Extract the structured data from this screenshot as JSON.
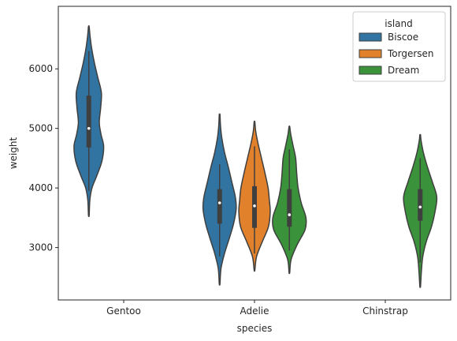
{
  "chart_data": {
    "type": "violin",
    "xlabel": "species",
    "ylabel": "weight",
    "categories": [
      "Gentoo",
      "Adelie",
      "Chinstrap"
    ],
    "ylim": [
      2120,
      7050
    ],
    "yticks": [
      3000,
      4000,
      5000,
      6000
    ],
    "legend": {
      "title": "island",
      "placement": "top-right"
    },
    "series": [
      {
        "name": "Biscoe",
        "color": "#3274a1"
      },
      {
        "name": "Torgersen",
        "color": "#e1812c"
      },
      {
        "name": "Dream",
        "color": "#3a923a"
      }
    ],
    "violins": [
      {
        "category": "Gentoo",
        "island": "Biscoe",
        "min": 3540,
        "max": 6710,
        "q1": 4680,
        "median": 5000,
        "q3": 5550,
        "whisker_low": 3950,
        "whisker_high": 6300,
        "density": [
          [
            3540,
            0.02
          ],
          [
            3800,
            0.06
          ],
          [
            4000,
            0.18
          ],
          [
            4200,
            0.45
          ],
          [
            4450,
            0.75
          ],
          [
            4700,
            0.85
          ],
          [
            4900,
            0.7
          ],
          [
            5100,
            0.6
          ],
          [
            5350,
            0.68
          ],
          [
            5600,
            0.72
          ],
          [
            5850,
            0.52
          ],
          [
            6100,
            0.32
          ],
          [
            6350,
            0.16
          ],
          [
            6550,
            0.07
          ],
          [
            6710,
            0.02
          ]
        ]
      },
      {
        "category": "Adelie",
        "island": "Biscoe",
        "min": 2390,
        "max": 5230,
        "q1": 3400,
        "median": 3750,
        "q3": 3980,
        "whisker_low": 2850,
        "whisker_high": 4400,
        "density": [
          [
            2390,
            0.02
          ],
          [
            2650,
            0.08
          ],
          [
            2900,
            0.28
          ],
          [
            3150,
            0.55
          ],
          [
            3400,
            0.8
          ],
          [
            3650,
            0.95
          ],
          [
            3850,
            0.9
          ],
          [
            4100,
            0.7
          ],
          [
            4350,
            0.5
          ],
          [
            4600,
            0.28
          ],
          [
            4850,
            0.12
          ],
          [
            5050,
            0.05
          ],
          [
            5230,
            0.02
          ]
        ]
      },
      {
        "category": "Adelie",
        "island": "Torgersen",
        "min": 2620,
        "max": 5110,
        "q1": 3330,
        "median": 3700,
        "q3": 4030,
        "whisker_low": 2900,
        "whisker_high": 4700,
        "density": [
          [
            2620,
            0.02
          ],
          [
            2850,
            0.12
          ],
          [
            3100,
            0.45
          ],
          [
            3350,
            0.8
          ],
          [
            3600,
            0.9
          ],
          [
            3800,
            0.85
          ],
          [
            4000,
            0.78
          ],
          [
            4250,
            0.6
          ],
          [
            4500,
            0.4
          ],
          [
            4750,
            0.2
          ],
          [
            4950,
            0.07
          ],
          [
            5110,
            0.02
          ]
        ]
      },
      {
        "category": "Adelie",
        "island": "Dream",
        "min": 2580,
        "max": 5030,
        "q1": 3350,
        "median": 3550,
        "q3": 3980,
        "whisker_low": 2950,
        "whisker_high": 4650,
        "density": [
          [
            2580,
            0.02
          ],
          [
            2800,
            0.1
          ],
          [
            3050,
            0.45
          ],
          [
            3300,
            0.9
          ],
          [
            3500,
            0.95
          ],
          [
            3750,
            0.68
          ],
          [
            4000,
            0.5
          ],
          [
            4250,
            0.42
          ],
          [
            4500,
            0.36
          ],
          [
            4700,
            0.22
          ],
          [
            4900,
            0.08
          ],
          [
            5030,
            0.02
          ]
        ]
      },
      {
        "category": "Chinstrap",
        "island": "Dream",
        "min": 2350,
        "max": 4890,
        "q1": 3450,
        "median": 3680,
        "q3": 3980,
        "whisker_low": 2750,
        "whisker_high": 4500,
        "density": [
          [
            2350,
            0.02
          ],
          [
            2600,
            0.07
          ],
          [
            2850,
            0.15
          ],
          [
            3100,
            0.35
          ],
          [
            3350,
            0.65
          ],
          [
            3600,
            0.85
          ],
          [
            3850,
            0.95
          ],
          [
            4100,
            0.7
          ],
          [
            4350,
            0.42
          ],
          [
            4600,
            0.18
          ],
          [
            4800,
            0.05
          ],
          [
            4890,
            0.02
          ]
        ]
      }
    ]
  }
}
